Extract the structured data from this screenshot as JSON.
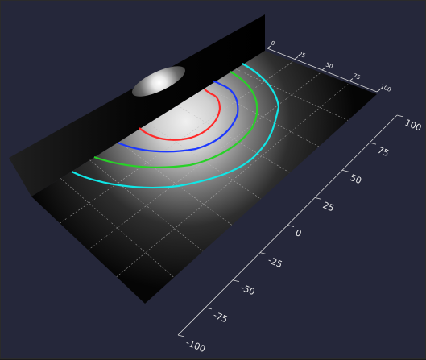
{
  "viewport": {
    "background_color": "#25273a",
    "axis_color": "#d8d8d8",
    "grid_color": "#bdbdbd"
  },
  "vertical_axis": {
    "ticks": [
      "100",
      "75",
      "50",
      "25",
      "0",
      "-25",
      "-50",
      "-75",
      "-100"
    ]
  },
  "top_axis": {
    "ticks": [
      "0",
      "25",
      "50",
      "75",
      "100"
    ]
  },
  "contours": [
    {
      "color": "#ff2a2a"
    },
    {
      "color": "#1c38ff"
    },
    {
      "color": "#27d227"
    },
    {
      "color": "#10e6e6"
    }
  ]
}
